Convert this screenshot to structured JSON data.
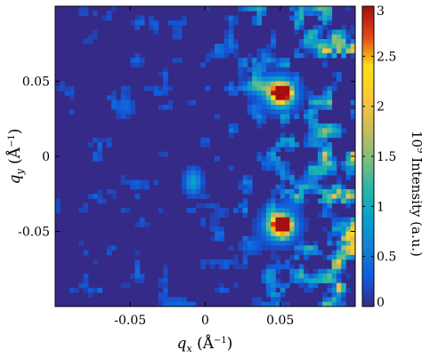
{
  "chart_data": {
    "type": "heatmap",
    "title": "",
    "xlabel": "qx (Å−1)",
    "ylabel": "qy (Å−1)",
    "xlabel_parts": {
      "sym": "q",
      "sub": "x",
      "unit_open": " (Å",
      "unit_exp": "−1",
      "unit_close": ")"
    },
    "ylabel_parts": {
      "sym": "q",
      "sub": "y",
      "unit_open": " (Å",
      "unit_exp": "−1",
      "unit_close": ")"
    },
    "xlim": [
      -0.1,
      0.1
    ],
    "ylim": [
      -0.1,
      0.1
    ],
    "x_ticks": [
      -0.05,
      0,
      0.05
    ],
    "x_tick_labels": [
      "-0.05",
      "0",
      "0.05"
    ],
    "y_ticks": [
      0.05,
      0,
      -0.05
    ],
    "y_tick_labels": [
      "0.05",
      "0",
      "-0.05"
    ],
    "colorbar": {
      "label": "10⁹ Intensity (a.u.)",
      "label_parts": {
        "base": "10",
        "exp": "9",
        "rest": " Intensity (a.u.)"
      },
      "range": [
        0,
        3
      ],
      "ticks": [
        0,
        0.5,
        1,
        1.5,
        2,
        2.5,
        3
      ],
      "tick_labels": [
        "0",
        "0.5",
        "1",
        "1.5",
        "2",
        "2.5",
        "3"
      ],
      "colormap": "parula",
      "colors": [
        "#352a87",
        "#0f5cdd",
        "#1481d6",
        "#06a4ca",
        "#2eb7a4",
        "#87bf77",
        "#d1bb59",
        "#fec832",
        "#f9e014",
        "#e2441c",
        "#a50f0f"
      ]
    },
    "peaks": [
      {
        "x": 0.05,
        "y": 0.042,
        "intensity": 3.0
      },
      {
        "x": 0.05,
        "y": -0.046,
        "intensity": 3.0
      }
    ],
    "grid": false
  }
}
